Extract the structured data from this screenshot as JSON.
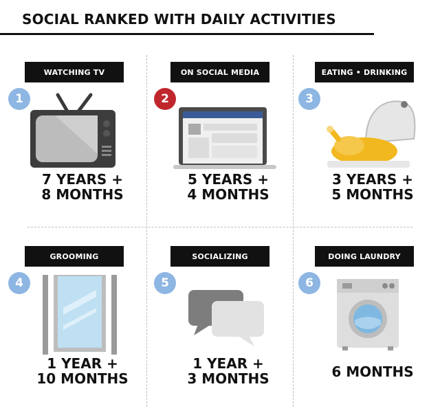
{
  "title": "SOCIAL RANKED WITH DAILY ACTIVITIES",
  "items": [
    {
      "rank": "1",
      "label": "WATCHING TV",
      "line1": "7 YEARS +",
      "line2": "8 MONTHS",
      "icon": "tv-icon"
    },
    {
      "rank": "2",
      "label": "ON SOCIAL MEDIA",
      "line1": "5 YEARS +",
      "line2": "4 MONTHS",
      "icon": "laptop-icon",
      "highlight_color": "#c0272d"
    },
    {
      "rank": "3",
      "label": "EATING • DRINKING",
      "line1": "3 YEARS +",
      "line2": "5 MONTHS",
      "icon": "roast-chicken-icon"
    },
    {
      "rank": "4",
      "label": "GROOMING",
      "line1": "1 YEAR +",
      "line2": "10 MONTHS",
      "icon": "mirror-icon"
    },
    {
      "rank": "5",
      "label": "SOCIALIZING",
      "line1": "1 YEAR +",
      "line2": "3 MONTHS",
      "icon": "chat-bubbles-icon"
    },
    {
      "rank": "6",
      "label": "DOING LAUNDRY",
      "line1": "6 MONTHS",
      "line2": "",
      "icon": "washing-machine-icon"
    }
  ],
  "colors": {
    "badge": "#8db6e3",
    "badge_highlight": "#c0272d",
    "label_bg": "#111111"
  }
}
